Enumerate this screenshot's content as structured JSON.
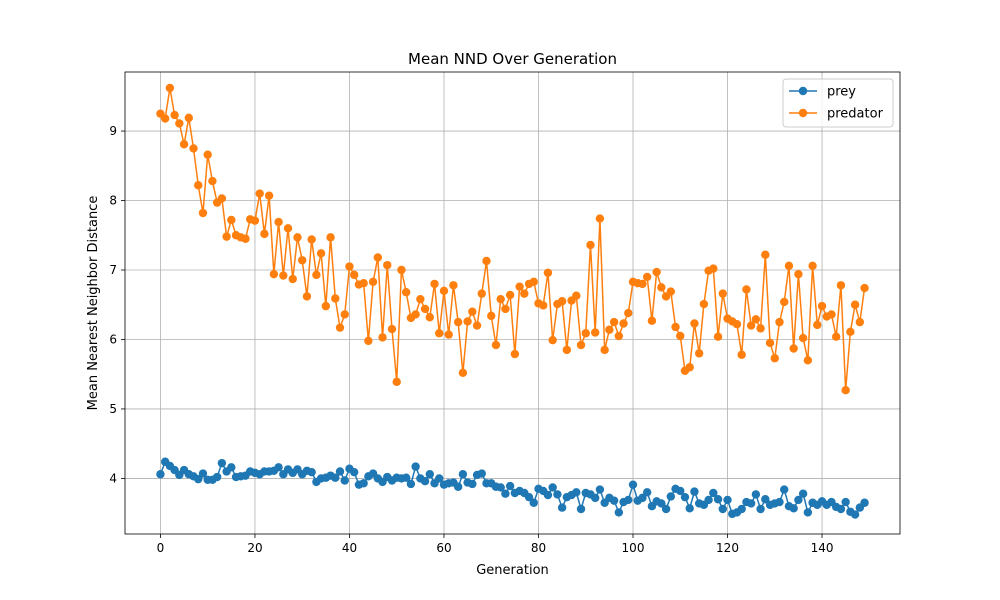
{
  "chart_data": {
    "type": "line",
    "title": "Mean NND Over Generation",
    "xlabel": "Generation",
    "ylabel": "Mean Nearest Neighbor Distance",
    "xlim": [
      -7.5,
      156.5
    ],
    "ylim": [
      3.2,
      9.85
    ],
    "xticks": [
      0,
      20,
      40,
      60,
      80,
      100,
      120,
      140
    ],
    "yticks": [
      4,
      5,
      6,
      7,
      8,
      9
    ],
    "grid": true,
    "legend": "top-right",
    "series": [
      {
        "name": "prey",
        "color": "#1f77b4",
        "values": [
          4.06,
          4.24,
          4.18,
          4.12,
          4.05,
          4.12,
          4.06,
          4.03,
          3.99,
          4.07,
          3.98,
          3.98,
          4.02,
          4.22,
          4.1,
          4.16,
          4.02,
          4.03,
          4.04,
          4.1,
          4.08,
          4.06,
          4.1,
          4.1,
          4.11,
          4.16,
          4.06,
          4.13,
          4.08,
          4.13,
          4.06,
          4.11,
          4.09,
          3.95,
          4.0,
          4.01,
          4.04,
          4.01,
          4.1,
          3.97,
          4.14,
          4.09,
          3.91,
          3.93,
          4.03,
          4.07,
          4.0,
          3.95,
          4.02,
          3.97,
          4.01,
          4.0,
          4.01,
          3.92,
          4.17,
          4.0,
          3.96,
          4.06,
          3.93,
          4.0,
          3.91,
          3.93,
          3.94,
          3.88,
          4.06,
          3.94,
          3.92,
          4.05,
          4.07,
          3.93,
          3.93,
          3.88,
          3.87,
          3.78,
          3.89,
          3.79,
          3.82,
          3.79,
          3.73,
          3.65,
          3.85,
          3.82,
          3.76,
          3.87,
          3.77,
          3.58,
          3.73,
          3.76,
          3.8,
          3.56,
          3.79,
          3.77,
          3.72,
          3.84,
          3.65,
          3.72,
          3.68,
          3.51,
          3.66,
          3.69,
          3.91,
          3.68,
          3.72,
          3.8,
          3.6,
          3.67,
          3.64,
          3.56,
          3.74,
          3.85,
          3.82,
          3.73,
          3.57,
          3.81,
          3.64,
          3.62,
          3.69,
          3.79,
          3.7,
          3.56,
          3.69,
          3.49,
          3.51,
          3.56,
          3.66,
          3.64,
          3.77,
          3.56,
          3.7,
          3.62,
          3.64,
          3.66,
          3.84,
          3.6,
          3.57,
          3.69,
          3.78,
          3.51,
          3.65,
          3.62,
          3.67,
          3.62,
          3.66,
          3.59,
          3.56,
          3.66,
          3.52,
          3.48,
          3.58,
          3.65
        ]
      },
      {
        "name": "predator",
        "color": "#ff7f0e",
        "values": [
          9.25,
          9.18,
          9.62,
          9.23,
          9.11,
          8.81,
          9.19,
          8.75,
          8.22,
          7.82,
          8.66,
          8.28,
          7.97,
          8.03,
          7.48,
          7.72,
          7.5,
          7.47,
          7.45,
          7.73,
          7.71,
          8.1,
          7.52,
          8.07,
          6.94,
          7.69,
          6.92,
          7.6,
          6.87,
          7.47,
          7.14,
          6.62,
          7.44,
          6.93,
          7.24,
          6.48,
          7.47,
          6.59,
          6.17,
          6.36,
          7.05,
          6.93,
          6.79,
          6.81,
          5.98,
          6.83,
          7.18,
          6.03,
          7.07,
          6.15,
          5.39,
          7.0,
          6.68,
          6.31,
          6.36,
          6.58,
          6.44,
          6.32,
          6.8,
          6.09,
          6.7,
          6.07,
          6.78,
          6.25,
          5.52,
          6.26,
          6.4,
          6.2,
          6.66,
          7.13,
          6.34,
          5.92,
          6.58,
          6.44,
          6.64,
          5.79,
          6.76,
          6.66,
          6.8,
          6.83,
          6.52,
          6.49,
          6.96,
          5.99,
          6.51,
          6.55,
          5.85,
          6.56,
          6.63,
          5.92,
          6.09,
          7.36,
          6.1,
          7.74,
          5.85,
          6.14,
          6.25,
          6.05,
          6.23,
          6.38,
          6.83,
          6.81,
          6.8,
          6.9,
          6.27,
          6.97,
          6.75,
          6.62,
          6.69,
          6.18,
          6.05,
          5.55,
          5.6,
          6.23,
          5.8,
          6.51,
          6.99,
          7.02,
          6.04,
          6.66,
          6.3,
          6.26,
          6.22,
          5.78,
          6.72,
          6.2,
          6.29,
          6.16,
          7.22,
          5.95,
          5.73,
          6.25,
          6.54,
          7.06,
          5.87,
          6.94,
          6.02,
          5.7,
          7.06,
          6.21,
          6.48,
          6.33,
          6.36,
          6.04,
          6.78,
          5.27,
          6.11,
          6.5,
          6.25,
          6.74
        ]
      }
    ]
  }
}
